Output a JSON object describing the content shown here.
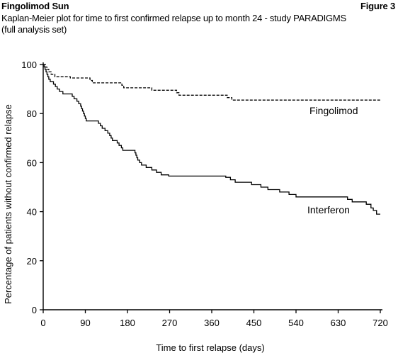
{
  "header": {
    "left": "Fingolimod Sun",
    "right": "Figure 3",
    "subtitle_line1": "Kaplan-Meier plot for time to first confirmed relapse up to month 24 - study PARADIGMS",
    "subtitle_line2": "(full analysis set)"
  },
  "chart_data": {
    "type": "line",
    "title": "Kaplan-Meier plot for time to first confirmed relapse up to month 24 - study PARADIGMS (full analysis set)",
    "xlabel": "Time to first relapse (days)",
    "ylabel": "Percentage of patients without confirmed relapse",
    "xlim": [
      0,
      720
    ],
    "ylim": [
      0,
      100
    ],
    "x_ticks": [
      "0",
      "90",
      "180",
      "270",
      "360",
      "450",
      "540",
      "630",
      "720"
    ],
    "y_ticks": [
      "0",
      "20",
      "40",
      "60",
      "80",
      "100"
    ],
    "grid": false,
    "step": true,
    "series": [
      {
        "name": "Fingolimod",
        "line_style": "dashed",
        "color": "#000000",
        "points": [
          [
            0,
            100
          ],
          [
            5,
            99
          ],
          [
            8,
            98
          ],
          [
            12,
            97
          ],
          [
            17,
            96
          ],
          [
            25,
            95
          ],
          [
            58,
            94.5
          ],
          [
            100,
            93.5
          ],
          [
            105,
            92.5
          ],
          [
            168,
            91.5
          ],
          [
            172,
            90.5
          ],
          [
            232,
            89.5
          ],
          [
            285,
            88.5
          ],
          [
            290,
            87.5
          ],
          [
            393,
            86.5
          ],
          [
            403,
            85.5
          ],
          [
            720,
            85.5
          ]
        ]
      },
      {
        "name": "Interferon",
        "line_style": "solid",
        "color": "#000000",
        "points": [
          [
            0,
            100
          ],
          [
            2,
            99
          ],
          [
            4,
            98
          ],
          [
            6,
            97
          ],
          [
            8,
            96
          ],
          [
            10,
            95
          ],
          [
            12,
            94
          ],
          [
            15,
            93
          ],
          [
            22,
            92
          ],
          [
            26,
            91
          ],
          [
            30,
            90
          ],
          [
            35,
            89
          ],
          [
            42,
            88
          ],
          [
            62,
            87
          ],
          [
            66,
            86
          ],
          [
            72,
            85
          ],
          [
            76,
            84
          ],
          [
            80,
            83
          ],
          [
            82,
            82
          ],
          [
            84,
            81
          ],
          [
            86,
            80
          ],
          [
            88,
            79
          ],
          [
            90,
            78
          ],
          [
            92,
            77
          ],
          [
            118,
            76
          ],
          [
            122,
            75
          ],
          [
            126,
            74
          ],
          [
            132,
            73
          ],
          [
            138,
            72
          ],
          [
            142,
            71
          ],
          [
            145,
            70
          ],
          [
            148,
            69
          ],
          [
            158,
            68
          ],
          [
            162,
            67
          ],
          [
            167,
            66
          ],
          [
            170,
            65
          ],
          [
            196,
            64
          ],
          [
            198,
            63
          ],
          [
            200,
            62
          ],
          [
            202,
            61
          ],
          [
            206,
            60
          ],
          [
            210,
            59
          ],
          [
            220,
            58
          ],
          [
            232,
            57
          ],
          [
            242,
            56
          ],
          [
            252,
            55
          ],
          [
            268,
            54.5
          ],
          [
            390,
            54
          ],
          [
            400,
            53
          ],
          [
            410,
            52
          ],
          [
            445,
            51
          ],
          [
            465,
            50
          ],
          [
            480,
            49
          ],
          [
            505,
            48
          ],
          [
            525,
            47
          ],
          [
            540,
            46
          ],
          [
            570,
            46
          ],
          [
            650,
            45
          ],
          [
            660,
            44
          ],
          [
            690,
            43
          ],
          [
            700,
            41.5
          ],
          [
            705,
            40.5
          ],
          [
            712,
            39
          ],
          [
            720,
            39
          ]
        ]
      }
    ],
    "annotations": [
      {
        "text": "Fingolimod",
        "series": "Fingolimod"
      },
      {
        "text": "Interferon",
        "series": "Interferon"
      }
    ]
  }
}
